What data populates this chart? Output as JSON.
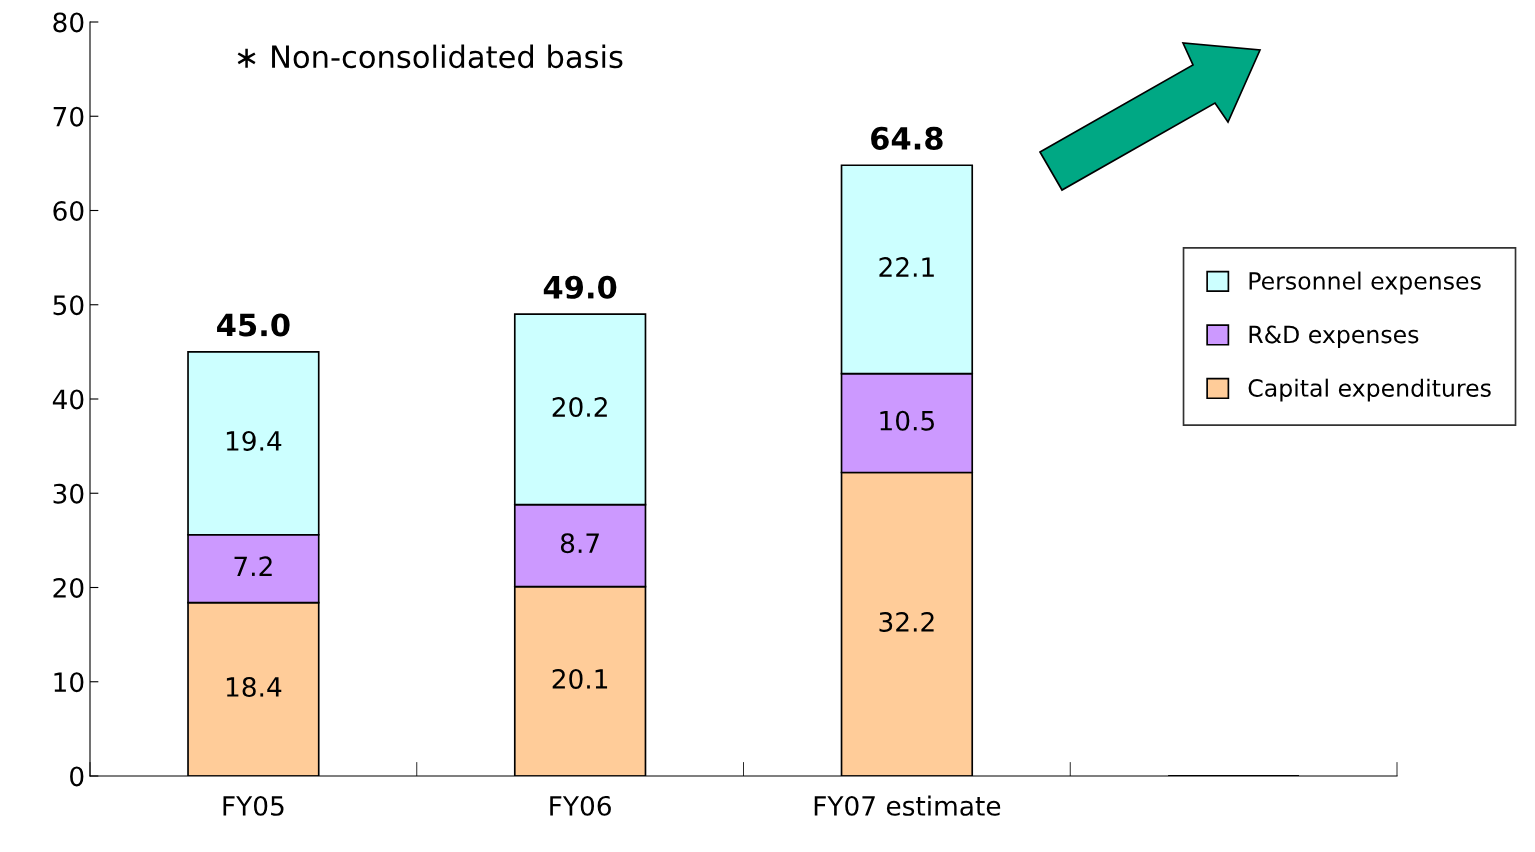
{
  "chart_data": {
    "type": "bar",
    "stacked": true,
    "categories": [
      "FY05",
      "FY06",
      "FY07 estimate",
      null
    ],
    "series": [
      {
        "name": "Capital expenditures",
        "color": "#ffcc99",
        "values": [
          18.4,
          20.1,
          32.2,
          null
        ]
      },
      {
        "name": "R&D expenses",
        "color": "#cc99ff",
        "values": [
          7.2,
          8.7,
          10.5,
          null
        ]
      },
      {
        "name": "Personnel expenses",
        "color": "#ccffff",
        "values": [
          19.4,
          20.2,
          22.1,
          null
        ]
      }
    ],
    "totals": [
      "45.0",
      "49.0",
      "64.8",
      null
    ],
    "data_labels": true,
    "ylim": [
      0,
      80
    ],
    "yticks": [
      0,
      10,
      20,
      30,
      40,
      50,
      60,
      70,
      80
    ],
    "grid": false,
    "legend": "right",
    "annotations": [
      "∗ Non-consolidated basis"
    ]
  }
}
